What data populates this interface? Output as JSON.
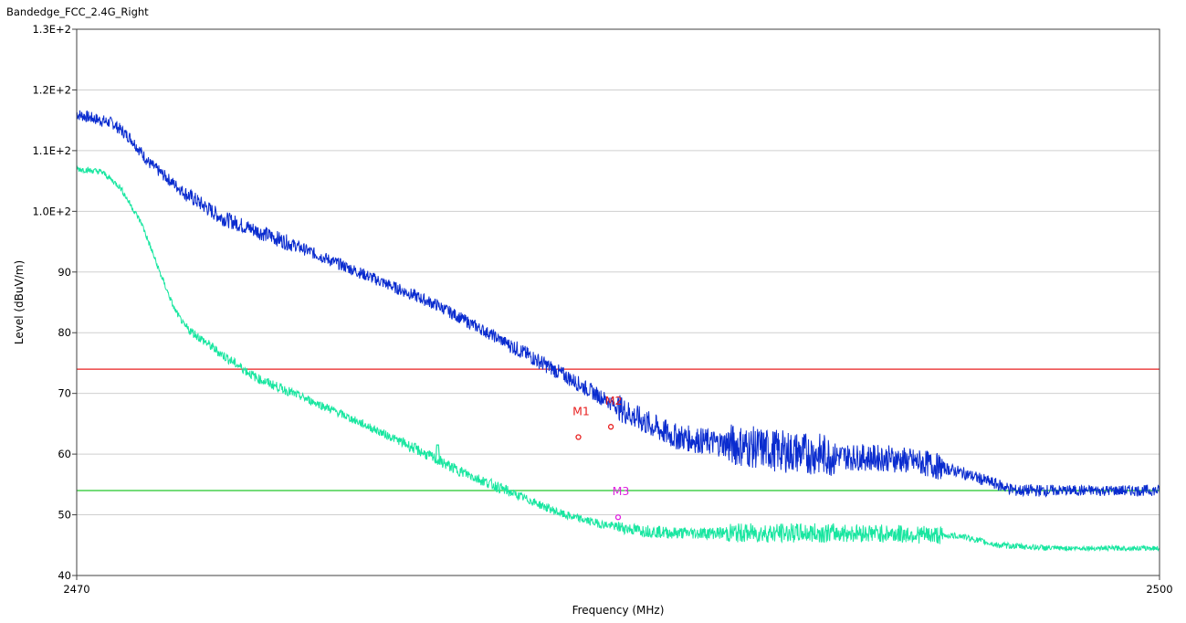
{
  "chart_data": {
    "type": "line",
    "title": "Bandedge_FCC_2.4G_Right",
    "xlabel": "Frequency (MHz)",
    "ylabel": "Level (dBuV/m)",
    "xlim": [
      2470,
      2500
    ],
    "ylim": [
      40,
      130
    ],
    "x_ticks": [
      {
        "value": 2470,
        "label": "2470"
      },
      {
        "value": 2500,
        "label": "2500"
      }
    ],
    "y_ticks": [
      {
        "value": 130,
        "label": "1.3E+2"
      },
      {
        "value": 120,
        "label": "1.2E+2"
      },
      {
        "value": 110,
        "label": "1.1E+2"
      },
      {
        "value": 100,
        "label": "1.0E+2"
      },
      {
        "value": 90,
        "label": "90"
      },
      {
        "value": 80,
        "label": "80"
      },
      {
        "value": 70,
        "label": "70"
      },
      {
        "value": 60,
        "label": "60"
      },
      {
        "value": 50,
        "label": "50"
      },
      {
        "value": 40,
        "label": "40"
      }
    ],
    "grid": true,
    "series": [
      {
        "color": "#0a2ccf",
        "noise": [
          1.0,
          1.3,
          1.0,
          1.0,
          1.3,
          2.2,
          3.5,
          2.2,
          1.0,
          0.9
        ],
        "x": [
          2470.0,
          2471.0,
          2471.5,
          2472.0,
          2473.0,
          2474.0,
          2476.0,
          2478.0,
          2480.0,
          2482.0,
          2483.5,
          2484.5,
          2485.5,
          2486.5,
          2487.5,
          2488.5,
          2489.5,
          2490.5,
          2491.5,
          2492.5,
          2493.5,
          2494.5,
          2496.0,
          2500.0
        ],
        "y": [
          116.0,
          114.5,
          112.0,
          108.0,
          103.0,
          99.0,
          94.5,
          89.5,
          84.5,
          78.0,
          73.0,
          69.5,
          66.0,
          63.0,
          62.0,
          61.3,
          60.5,
          60.0,
          59.5,
          59.3,
          58.5,
          57.0,
          54.0,
          54.0
        ]
      },
      {
        "color": "#18e6a0",
        "noise": [
          0.5,
          0.8,
          0.7,
          0.9,
          0.7,
          1.0,
          1.6,
          1.5,
          0.5,
          0.4
        ],
        "x": [
          2470.0,
          2470.7,
          2471.2,
          2471.8,
          2472.3,
          2472.7,
          2473.0,
          2474.0,
          2475.0,
          2477.0,
          2479.0,
          2480.5,
          2481.5,
          2482.5,
          2483.5,
          2484.5,
          2485.5,
          2486.5,
          2488.0,
          2490.0,
          2492.0,
          2494.5,
          2495.5,
          2497.0,
          2500.0
        ],
        "y": [
          107.0,
          106.5,
          104.0,
          98.0,
          90.0,
          84.0,
          81.0,
          76.5,
          72.5,
          67.5,
          62.0,
          57.5,
          55.0,
          52.5,
          50.0,
          48.5,
          47.5,
          47.0,
          47.0,
          47.0,
          47.0,
          46.5,
          45.0,
          44.5,
          44.5
        ]
      }
    ],
    "spike": {
      "x": 2480.0,
      "y_top": 61.5,
      "color": "#18e6a0"
    },
    "limit_lines": [
      {
        "y": 74,
        "color": "#e82020"
      },
      {
        "y": 54,
        "color": "#22c82a"
      }
    ],
    "markers": [
      {
        "label": "M1",
        "x": 2483.9,
        "y": 62.8,
        "color": "#e82020"
      },
      {
        "label": "M2",
        "x": 2484.8,
        "y": 64.5,
        "color": "#e82020"
      },
      {
        "label": "M3",
        "x": 2485.0,
        "y": 49.6,
        "color": "#e020e0"
      }
    ]
  }
}
